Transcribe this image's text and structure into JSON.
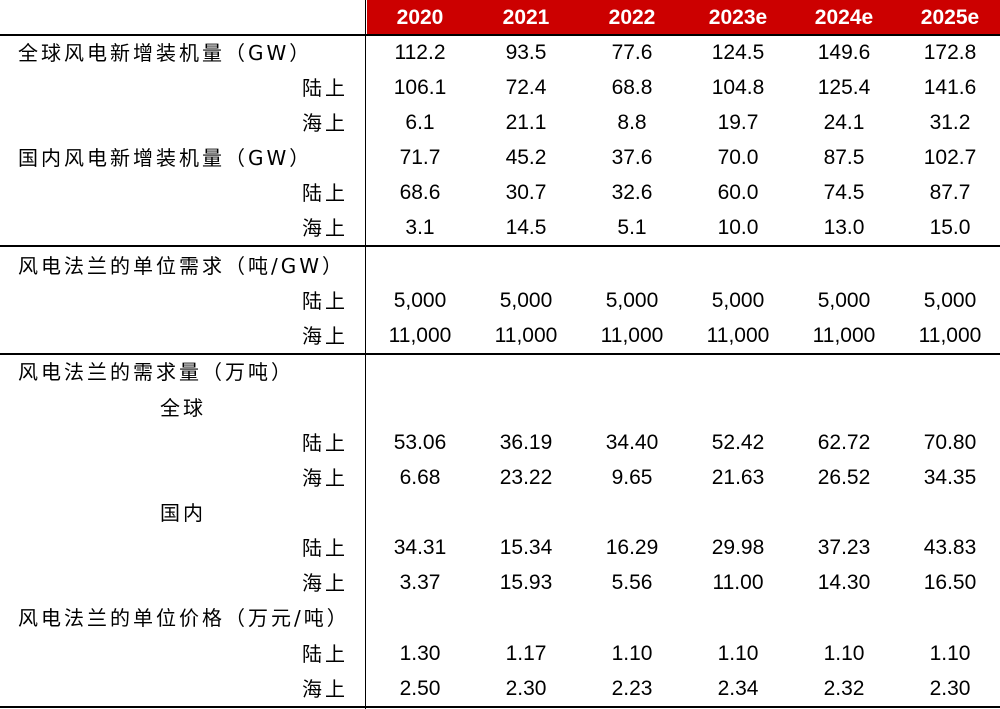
{
  "header": {
    "years": [
      "2020",
      "2021",
      "2022",
      "2023e",
      "2024e",
      "2025e"
    ]
  },
  "rows": [
    {
      "label": "全球风电新增装机量（GW）",
      "level": 0,
      "values": [
        "112.2",
        "93.5",
        "77.6",
        "124.5",
        "149.6",
        "172.8"
      ]
    },
    {
      "label": "陆上",
      "level": 2,
      "values": [
        "106.1",
        "72.4",
        "68.8",
        "104.8",
        "125.4",
        "141.6"
      ]
    },
    {
      "label": "海上",
      "level": 2,
      "values": [
        "6.1",
        "21.1",
        "8.8",
        "19.7",
        "24.1",
        "31.2"
      ]
    },
    {
      "label": "国内风电新增装机量（GW）",
      "level": 0,
      "values": [
        "71.7",
        "45.2",
        "37.6",
        "70.0",
        "87.5",
        "102.7"
      ]
    },
    {
      "label": "陆上",
      "level": 2,
      "values": [
        "68.6",
        "30.7",
        "32.6",
        "60.0",
        "74.5",
        "87.7"
      ]
    },
    {
      "label": "海上",
      "level": 2,
      "values": [
        "3.1",
        "14.5",
        "5.1",
        "10.0",
        "13.0",
        "15.0"
      ]
    },
    {
      "label": "风电法兰的单位需求（吨/GW）",
      "level": 0,
      "values": [
        "",
        "",
        "",
        "",
        "",
        ""
      ]
    },
    {
      "label": "陆上",
      "level": 2,
      "values": [
        "5,000",
        "5,000",
        "5,000",
        "5,000",
        "5,000",
        "5,000"
      ]
    },
    {
      "label": "海上",
      "level": 2,
      "values": [
        "11,000",
        "11,000",
        "11,000",
        "11,000",
        "11,000",
        "11,000"
      ]
    },
    {
      "label": "风电法兰的需求量（万吨）",
      "level": 0,
      "values": [
        "",
        "",
        "",
        "",
        "",
        ""
      ]
    },
    {
      "label": "全球",
      "level": 1,
      "values": [
        "",
        "",
        "",
        "",
        "",
        ""
      ]
    },
    {
      "label": "陆上",
      "level": 2,
      "values": [
        "53.06",
        "36.19",
        "34.40",
        "52.42",
        "62.72",
        "70.80"
      ]
    },
    {
      "label": "海上",
      "level": 2,
      "values": [
        "6.68",
        "23.22",
        "9.65",
        "21.63",
        "26.52",
        "34.35"
      ]
    },
    {
      "label": "国内",
      "level": 1,
      "values": [
        "",
        "",
        "",
        "",
        "",
        ""
      ]
    },
    {
      "label": "陆上",
      "level": 2,
      "values": [
        "34.31",
        "15.34",
        "16.29",
        "29.98",
        "37.23",
        "43.83"
      ]
    },
    {
      "label": "海上",
      "level": 2,
      "values": [
        "3.37",
        "15.93",
        "5.56",
        "11.00",
        "14.30",
        "16.50"
      ]
    },
    {
      "label": "风电法兰的单位价格（万元/吨）",
      "level": 0,
      "values": [
        "",
        "",
        "",
        "",
        "",
        ""
      ]
    },
    {
      "label": "陆上",
      "level": 2,
      "values": [
        "1.30",
        "1.17",
        "1.10",
        "1.10",
        "1.10",
        "1.10"
      ]
    },
    {
      "label": "海上",
      "level": 2,
      "values": [
        "2.50",
        "2.30",
        "2.23",
        "2.34",
        "2.32",
        "2.30"
      ]
    }
  ]
}
